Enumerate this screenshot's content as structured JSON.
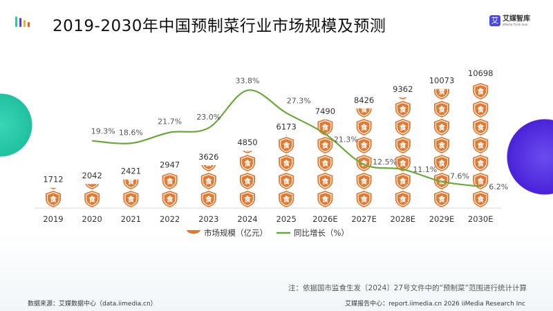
{
  "title": "2019-2030年中国预制菜行业市场规模及预测",
  "brand": {
    "name": "艾媒智库",
    "mark": "艾",
    "sub": "iiMedia Think tank"
  },
  "colors": {
    "bar": "#e8762d",
    "line": "#6aa838",
    "teal": "#2cc9a8",
    "purple": "#5530e0"
  },
  "icon": {
    "bar_unit": "shield-food-icon",
    "glyph": "食"
  },
  "chart_data": {
    "type": "bar",
    "categories": [
      "2019",
      "2020",
      "2021",
      "2022",
      "2023",
      "2024",
      "2025",
      "2026E",
      "2027E",
      "2028E",
      "2029E",
      "2030E"
    ],
    "series": [
      {
        "name": "市场规模（亿元）",
        "type": "pictogram-bar",
        "values": [
          1712,
          2042,
          2421,
          2947,
          3626,
          4850,
          6173,
          7490,
          8426,
          9362,
          10073,
          10698
        ],
        "labels": [
          "1712",
          "2042",
          "2421",
          "2947",
          "3626",
          "4850",
          "6173",
          "7490",
          "8426",
          "9362",
          "10073",
          "10698"
        ]
      },
      {
        "name": "同比增长（%）",
        "type": "line",
        "values": [
          null,
          19.3,
          18.6,
          21.7,
          23.0,
          33.8,
          27.3,
          21.3,
          12.5,
          11.1,
          7.6,
          6.2
        ],
        "labels": [
          "",
          "19.3%",
          "18.6%",
          "21.7%",
          "23.0%",
          "33.8%",
          "27.3%",
          "21.3%",
          "12.5%",
          "11.1%",
          "7.6%",
          "6.2%"
        ]
      }
    ],
    "legend": {
      "position": "bottom",
      "items": [
        "市场规模（亿元）",
        "同比增长（%）"
      ]
    },
    "grid": false
  },
  "footer": {
    "note": "注：依据国市监食生发〔2024〕27号文件中的“预制菜”范围进行统计计算",
    "source": "数据来源：艾媒数据中心（data.iimedia.cn）",
    "center": "艾媒报告中心：report.iimedia.cn   2026 iiMedia Research Inc"
  }
}
